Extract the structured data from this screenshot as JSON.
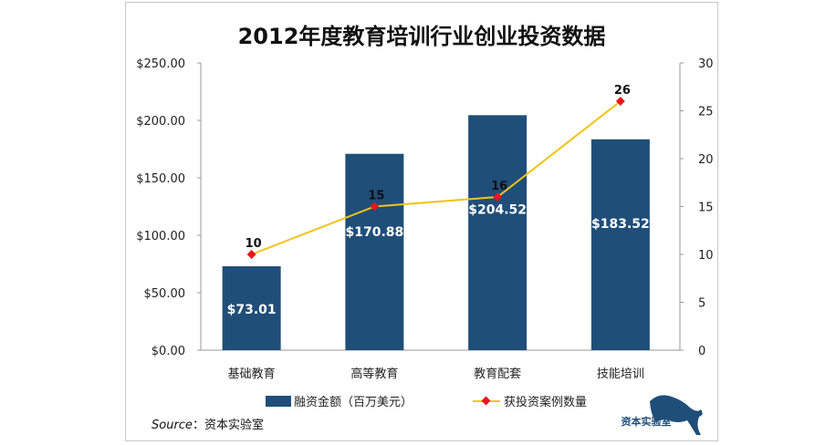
{
  "chart_data": {
    "type": "bar+line",
    "title": "2012年度教育培训行业创业投资数据",
    "categories": [
      "基础教育",
      "高等教育",
      "教育配套",
      "技能培训"
    ],
    "series": [
      {
        "name": "融资金额（百万美元）",
        "type": "bar",
        "axis": "left",
        "values": [
          73.01,
          170.88,
          204.52,
          183.52
        ],
        "labels": [
          "$73.01",
          "$170.88",
          "$204.52",
          "$183.52"
        ],
        "color": "#1f4e79"
      },
      {
        "name": "获投资案例数量",
        "type": "line",
        "axis": "right",
        "values": [
          10,
          15,
          16,
          26
        ],
        "labels": [
          "10",
          "15",
          "16",
          "26"
        ],
        "color": "#f2c318",
        "marker_color": "#e8161b"
      }
    ],
    "y_left": {
      "ylim": [
        0,
        250
      ],
      "ticks": [
        "$0.00",
        "$50.00",
        "$100.00",
        "$150.00",
        "$200.00",
        "$250.00"
      ]
    },
    "y_right": {
      "ylim": [
        0,
        30
      ],
      "ticks": [
        "0",
        "5",
        "10",
        "15",
        "20",
        "25",
        "30"
      ]
    },
    "grid": false,
    "legend": "bottom"
  },
  "source": {
    "prefix": "Source",
    "sep": "：",
    "text": "资本实验室"
  },
  "logo": {
    "text": "资本实验室"
  }
}
